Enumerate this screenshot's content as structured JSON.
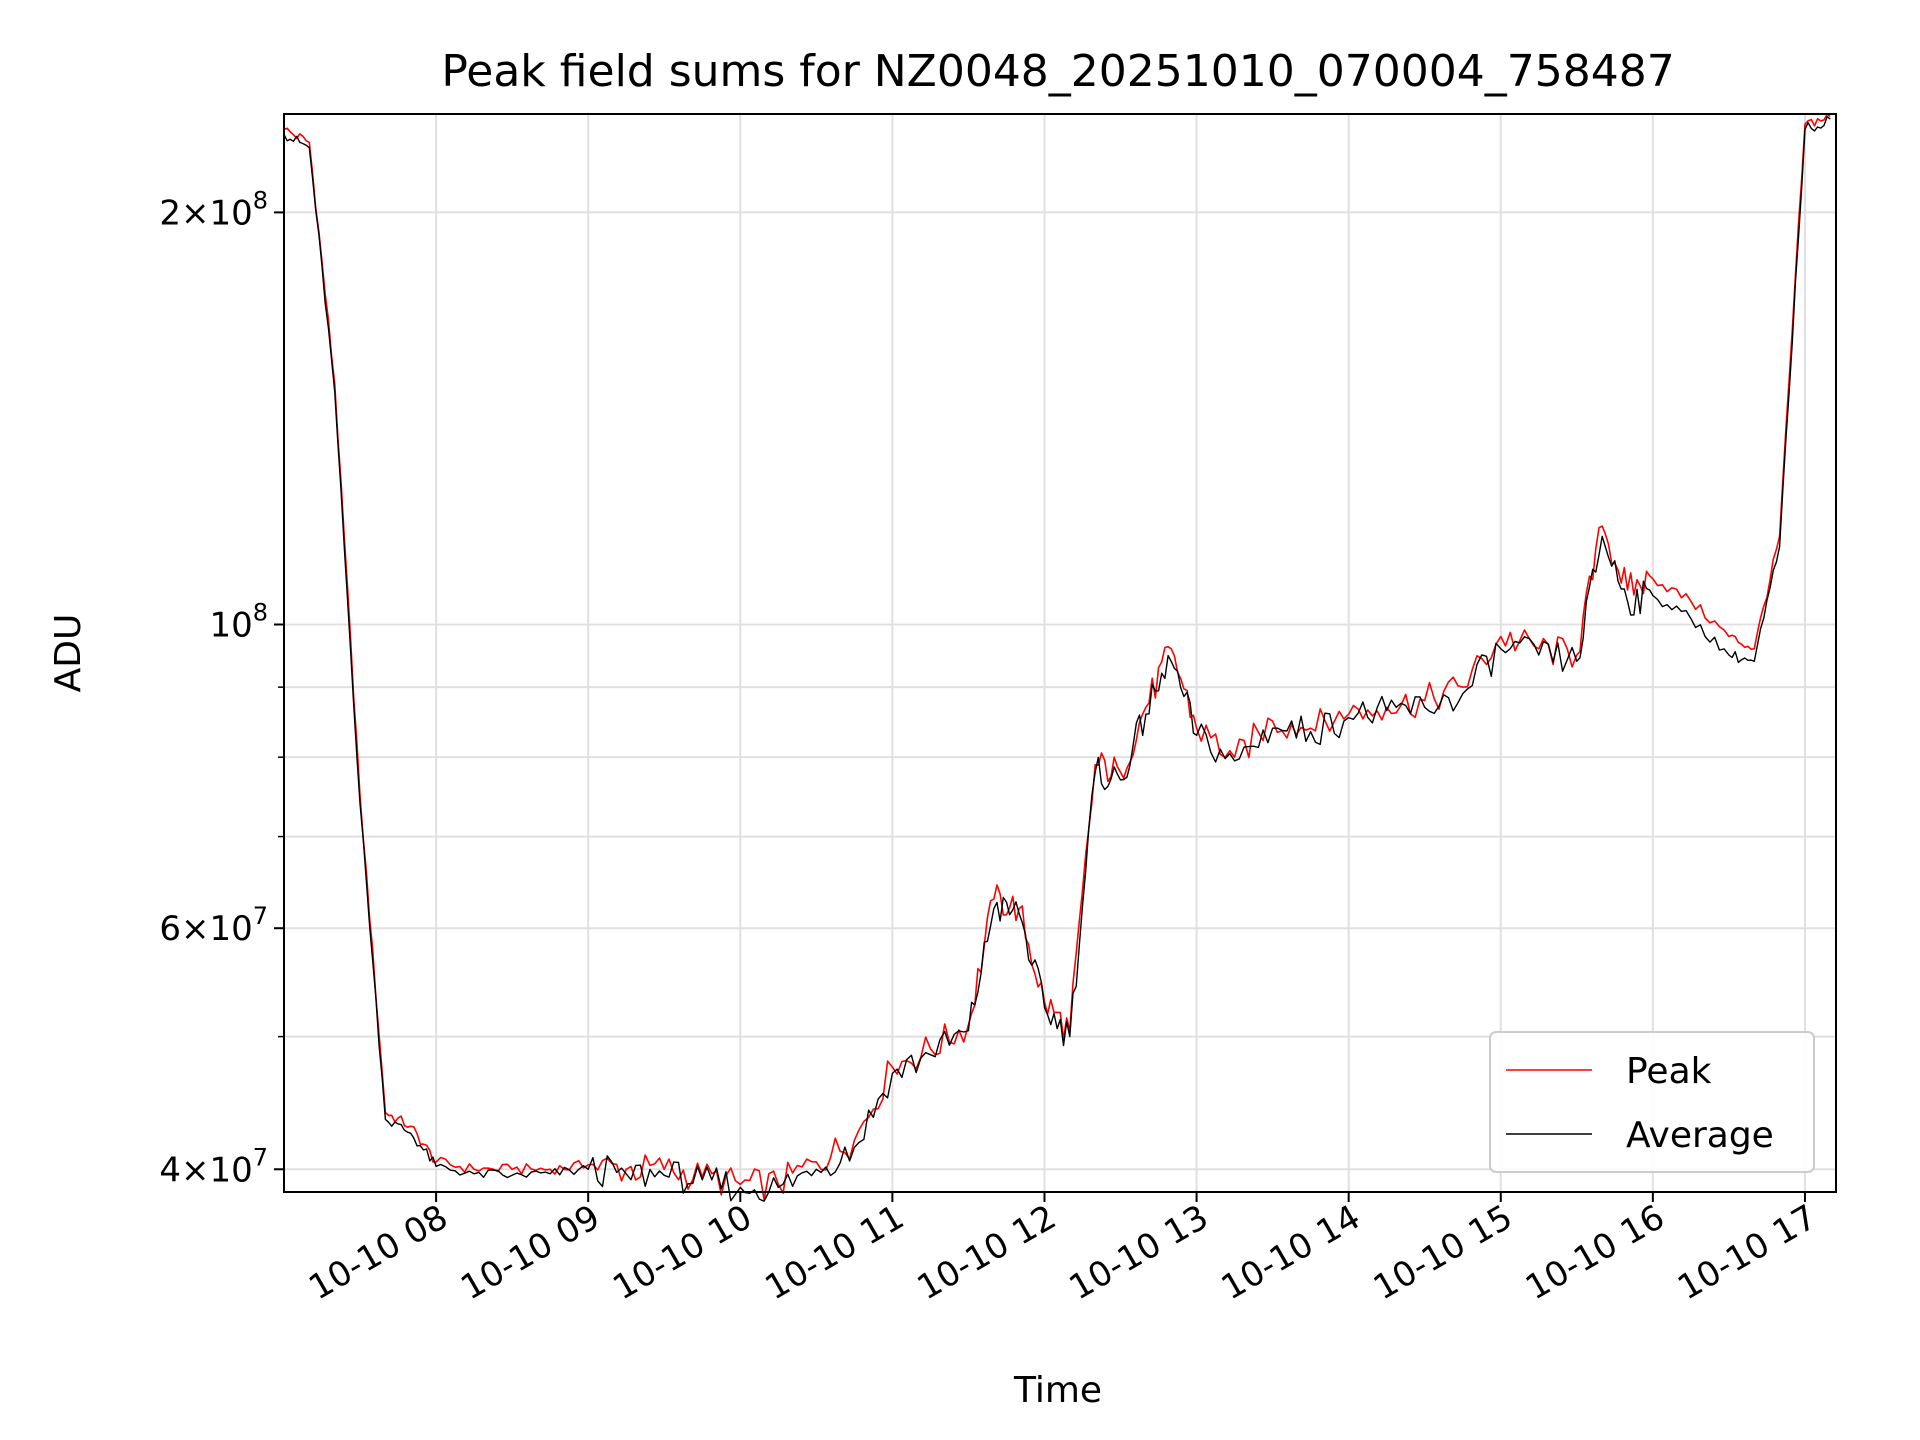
{
  "chart_data": {
    "type": "line",
    "title": "Peak field sums for NZ0048_20251010_070004_758487",
    "xlabel": "Time",
    "ylabel": "ADU",
    "yscale": "log",
    "ylim": [
      38500000,
      236000000
    ],
    "xlim": [
      "2025-10-10 07:00",
      "2025-10-10 17:00"
    ],
    "grid": true,
    "legend_position": "lower-right",
    "x_ticks": [
      "10-10 08",
      "10-10 09",
      "10-10 10",
      "10-10 11",
      "10-10 12",
      "10-10 13",
      "10-10 14",
      "10-10 15",
      "10-10 16",
      "10-10 17"
    ],
    "y_ticks": [
      {
        "value": 40000000,
        "label_mant": "4",
        "label_exp": "7"
      },
      {
        "value": 60000000,
        "label_mant": "6",
        "label_exp": "7"
      },
      {
        "value": 100000000,
        "label_mant": "",
        "label_exp": "8"
      },
      {
        "value": 200000000,
        "label_mant": "2",
        "label_exp": "8"
      }
    ],
    "y_minor_ticks": [
      50000000,
      70000000,
      80000000,
      90000000
    ],
    "x": [
      "07:00",
      "07:10",
      "07:20",
      "07:30",
      "07:40",
      "07:50",
      "08:00",
      "08:15",
      "08:30",
      "08:45",
      "09:00",
      "09:15",
      "09:30",
      "09:45",
      "10:00",
      "10:15",
      "10:30",
      "10:45",
      "11:00",
      "11:15",
      "11:30",
      "11:40",
      "11:50",
      "12:00",
      "12:10",
      "12:20",
      "12:30",
      "12:40",
      "12:50",
      "13:00",
      "13:15",
      "13:30",
      "13:45",
      "14:00",
      "14:15",
      "14:30",
      "14:45",
      "15:00",
      "15:15",
      "15:30",
      "15:40",
      "15:50",
      "16:00",
      "16:15",
      "16:30",
      "16:40",
      "16:50",
      "17:00",
      "17:10"
    ],
    "series": [
      {
        "name": "Peak",
        "color": "#ff0000",
        "values": [
          230000000,
          225000000,
          150000000,
          75000000,
          44000000,
          43000000,
          40500000,
          40000000,
          40000000,
          40000000,
          40300000,
          40000000,
          40000000,
          39500000,
          39000000,
          39000000,
          40500000,
          42000000,
          47500000,
          49000000,
          51000000,
          63000000,
          62000000,
          53000000,
          50500000,
          79000000,
          78000000,
          87000000,
          96000000,
          84000000,
          80000000,
          85000000,
          84000000,
          86000000,
          87000000,
          88000000,
          90000000,
          98000000,
          96000000,
          95000000,
          118000000,
          106000000,
          108000000,
          104000000,
          98000000,
          96000000,
          116000000,
          232000000,
          235000000
        ]
      },
      {
        "name": "Average",
        "color": "#000000",
        "values": [
          228000000,
          223000000,
          148000000,
          74000000,
          43500000,
          42500000,
          40200000,
          39700000,
          39600000,
          39700000,
          40000000,
          39700000,
          39600000,
          39300000,
          38800000,
          38800000,
          40000000,
          41500000,
          47000000,
          48500000,
          50500000,
          62000000,
          61500000,
          52500000,
          50000000,
          78000000,
          77000000,
          86000000,
          94000000,
          83000000,
          79500000,
          84000000,
          83500000,
          85500000,
          86500000,
          87000000,
          89000000,
          96000000,
          95000000,
          94000000,
          116000000,
          104000000,
          105000000,
          101000000,
          95000000,
          94000000,
          114000000,
          230000000,
          234000000
        ]
      }
    ]
  }
}
